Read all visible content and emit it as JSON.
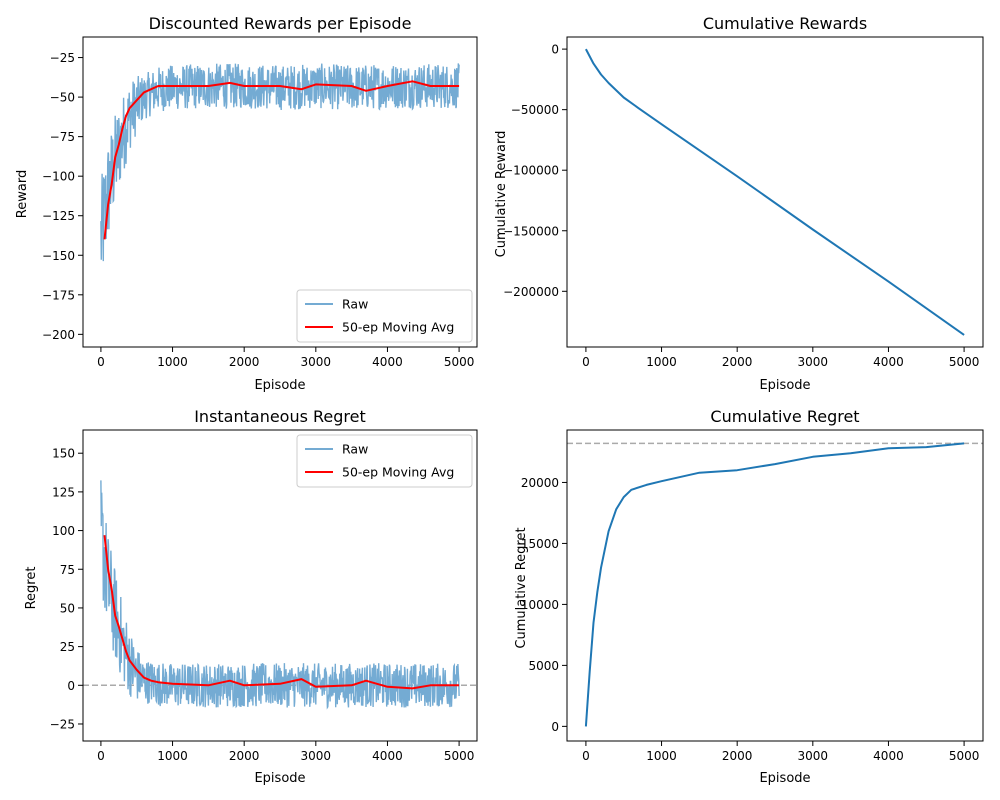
{
  "colors": {
    "raw": "#74abd3",
    "ma": "#ff0000",
    "cum": "#1f77b4",
    "ref": "#aaaaaa"
  },
  "chart_data": [
    {
      "id": "discounted",
      "type": "line",
      "title": "Discounted Rewards per Episode",
      "xlabel": "Episode",
      "ylabel": "Reward",
      "xlim": [
        -250,
        5250
      ],
      "ylim": [
        -208,
        -12
      ],
      "xticks": [
        0,
        1000,
        2000,
        3000,
        4000,
        5000
      ],
      "yticks": [
        -200,
        -175,
        -150,
        -125,
        -100,
        -75,
        -50,
        -25
      ],
      "legend": {
        "position": "lower-right",
        "entries": [
          "Raw",
          "50-ep Moving Avg"
        ]
      },
      "series": [
        {
          "name": "Raw",
          "role": "raw",
          "x": [
            0,
            100,
            200,
            300,
            400,
            500,
            600,
            800,
            1000,
            1500,
            2000,
            2500,
            3000,
            3500,
            4000,
            4500,
            5000
          ],
          "y": [
            -140,
            -110,
            -90,
            -75,
            -62,
            -55,
            -50,
            -45,
            -44,
            -43,
            -43,
            -44,
            -43,
            -44,
            -43,
            -43,
            -43
          ],
          "noise": 9
        },
        {
          "name": "50-ep Moving Avg",
          "role": "ma",
          "x": [
            50,
            100,
            150,
            200,
            250,
            300,
            350,
            400,
            500,
            600,
            700,
            800,
            1000,
            1500,
            1800,
            2000,
            2500,
            2800,
            3000,
            3500,
            3700,
            4000,
            4350,
            4600,
            5000
          ],
          "y": [
            -140,
            -118,
            -105,
            -88,
            -80,
            -70,
            -62,
            -57,
            -52,
            -47,
            -45,
            -43,
            -43,
            -43,
            -41,
            -43,
            -43,
            -45,
            -42,
            -43,
            -46,
            -43,
            -40,
            -43,
            -43
          ]
        }
      ]
    },
    {
      "id": "cumreward",
      "type": "line",
      "title": "Cumulative Rewards",
      "xlabel": "Episode",
      "ylabel": "Cumulative Reward",
      "xlim": [
        -250,
        5250
      ],
      "ylim": [
        -246000,
        10000
      ],
      "xticks": [
        0,
        1000,
        2000,
        3000,
        4000,
        5000
      ],
      "yticks": [
        0,
        -50000,
        -100000,
        -150000,
        -200000
      ],
      "series": [
        {
          "name": "",
          "role": "cum",
          "x": [
            0,
            100,
            200,
            300,
            500,
            700,
            1000,
            2000,
            3000,
            4000,
            5000
          ],
          "y": [
            0,
            -12000,
            -21000,
            -28000,
            -40000,
            -49000,
            -62000,
            -105000,
            -149000,
            -192000,
            -236000
          ]
        }
      ]
    },
    {
      "id": "regret",
      "type": "line",
      "title": "Instantaneous Regret",
      "xlabel": "Episode",
      "ylabel": "Regret",
      "xlim": [
        -250,
        5250
      ],
      "ylim": [
        -36,
        165
      ],
      "xticks": [
        0,
        1000,
        2000,
        3000,
        4000,
        5000
      ],
      "yticks": [
        -25,
        0,
        25,
        50,
        75,
        100,
        125,
        150
      ],
      "hline": 0,
      "legend": {
        "position": "upper-right",
        "entries": [
          "Raw",
          "50-ep Moving Avg"
        ]
      },
      "series": [
        {
          "name": "Raw",
          "role": "raw",
          "x": [
            0,
            100,
            200,
            300,
            400,
            500,
            600,
            800,
            1000,
            1500,
            2000,
            2500,
            3000,
            3500,
            4000,
            4500,
            5000
          ],
          "y": [
            98,
            65,
            45,
            28,
            15,
            7,
            3,
            1,
            0,
            0,
            0,
            0,
            0,
            0,
            0,
            0,
            0
          ],
          "noise": 9
        },
        {
          "name": "50-ep Moving Avg",
          "role": "ma",
          "x": [
            50,
            100,
            150,
            200,
            250,
            300,
            350,
            400,
            500,
            600,
            700,
            800,
            1000,
            1500,
            1800,
            2000,
            2500,
            2800,
            3000,
            3500,
            3700,
            4000,
            4350,
            4600,
            5000
          ],
          "y": [
            97,
            75,
            62,
            45,
            38,
            30,
            22,
            16,
            10,
            5,
            3,
            2,
            1,
            0,
            3,
            0,
            1,
            4,
            -1,
            0,
            3,
            -1,
            -2,
            0,
            0
          ]
        }
      ]
    },
    {
      "id": "cumregret",
      "type": "line",
      "title": "Cumulative Regret",
      "xlabel": "Episode",
      "ylabel": "Cumulative Regret",
      "xlim": [
        -250,
        5250
      ],
      "ylim": [
        -1200,
        24300
      ],
      "xticks": [
        0,
        1000,
        2000,
        3000,
        4000,
        5000
      ],
      "yticks": [
        0,
        5000,
        10000,
        15000,
        20000
      ],
      "hline": 23200,
      "series": [
        {
          "name": "",
          "role": "cum",
          "x": [
            0,
            50,
            100,
            150,
            200,
            300,
            400,
            500,
            600,
            800,
            1000,
            1500,
            2000,
            2500,
            3000,
            3500,
            4000,
            4500,
            5000
          ],
          "y": [
            0,
            4500,
            8500,
            11000,
            13000,
            16000,
            17800,
            18800,
            19400,
            19800,
            20100,
            20800,
            21000,
            21500,
            22100,
            22400,
            22800,
            22900,
            23200
          ]
        }
      ]
    }
  ]
}
